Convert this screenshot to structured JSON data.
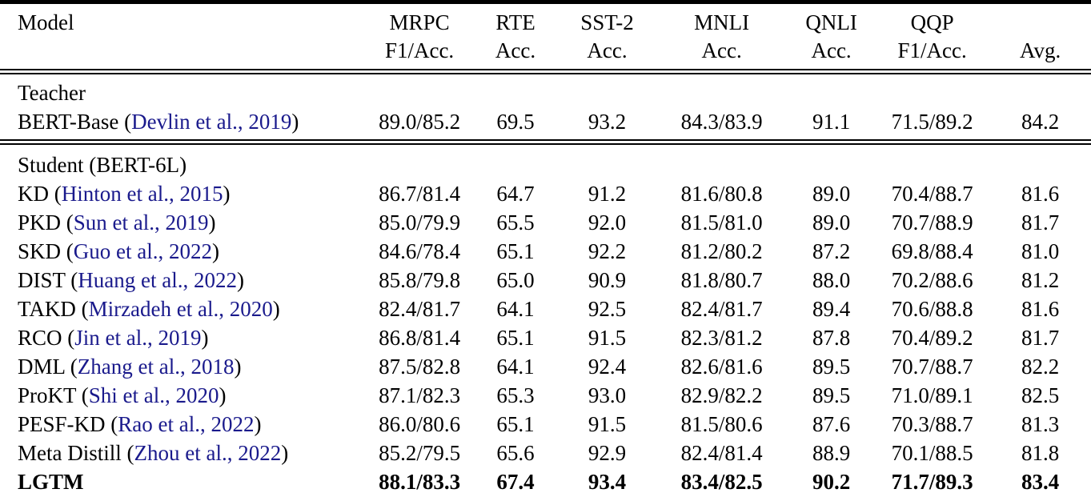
{
  "colors": {
    "text": "#000000",
    "citation_link": "#1a1a8c",
    "rule": "#000000",
    "background": "#ffffff"
  },
  "table": {
    "punctuation": {
      "open": " (",
      "close": ")"
    },
    "columns": [
      {
        "line1": "Model",
        "line2": ""
      },
      {
        "line1": "MRPC",
        "line2": "F1/Acc."
      },
      {
        "line1": "RTE",
        "line2": "Acc."
      },
      {
        "line1": "SST-2",
        "line2": "Acc."
      },
      {
        "line1": "MNLI",
        "line2": "Acc."
      },
      {
        "line1": "QNLI",
        "line2": "Acc."
      },
      {
        "line1": "QQP",
        "line2": "F1/Acc."
      },
      {
        "line1": "",
        "line2": "Avg."
      }
    ],
    "sections": [
      {
        "label": "Teacher",
        "rows": [
          {
            "name": "BERT-Base",
            "citation": "Devlin et al., 2019",
            "bold": false,
            "values": [
              "89.0/85.2",
              "69.5",
              "93.2",
              "84.3/83.9",
              "91.1",
              "71.5/89.2",
              "84.2"
            ]
          }
        ]
      },
      {
        "label": "Student (BERT-6L)",
        "rows": [
          {
            "name": "KD",
            "citation": "Hinton et al., 2015",
            "bold": false,
            "values": [
              "86.7/81.4",
              "64.7",
              "91.2",
              "81.6/80.8",
              "89.0",
              "70.4/88.7",
              "81.6"
            ]
          },
          {
            "name": "PKD",
            "citation": "Sun et al., 2019",
            "bold": false,
            "values": [
              "85.0/79.9",
              "65.5",
              "92.0",
              "81.5/81.0",
              "89.0",
              "70.7/88.9",
              "81.7"
            ]
          },
          {
            "name": "SKD",
            "citation": "Guo et al., 2022",
            "bold": false,
            "values": [
              "84.6/78.4",
              "65.1",
              "92.2",
              "81.2/80.2",
              "87.2",
              "69.8/88.4",
              "81.0"
            ]
          },
          {
            "name": "DIST",
            "citation": "Huang et al., 2022",
            "bold": false,
            "values": [
              "85.8/79.8",
              "65.0",
              "90.9",
              "81.8/80.7",
              "88.0",
              "70.2/88.6",
              "81.2"
            ]
          },
          {
            "name": "TAKD",
            "citation": "Mirzadeh et al., 2020",
            "bold": false,
            "values": [
              "82.4/81.7",
              "64.1",
              "92.5",
              "82.4/81.7",
              "89.4",
              "70.6/88.8",
              "81.6"
            ]
          },
          {
            "name": "RCO",
            "citation": "Jin et al., 2019",
            "bold": false,
            "values": [
              "86.8/81.4",
              "65.1",
              "91.5",
              "82.3/81.2",
              "87.8",
              "70.4/89.2",
              "81.7"
            ]
          },
          {
            "name": "DML",
            "citation": "Zhang et al., 2018",
            "bold": false,
            "values": [
              "87.5/82.8",
              "64.1",
              "92.4",
              "82.6/81.6",
              "89.5",
              "70.7/88.7",
              "82.2"
            ]
          },
          {
            "name": "ProKT",
            "citation": "Shi et al., 2020",
            "bold": false,
            "values": [
              "87.1/82.3",
              "65.3",
              "93.0",
              "82.9/82.2",
              "89.5",
              "71.0/89.1",
              "82.5"
            ]
          },
          {
            "name": "PESF-KD",
            "citation": "Rao et al., 2022",
            "bold": false,
            "values": [
              "86.0/80.6",
              "65.1",
              "91.5",
              "81.5/80.6",
              "87.6",
              "70.3/88.7",
              "81.3"
            ]
          },
          {
            "name": "Meta Distill",
            "citation": "Zhou et al., 2022",
            "bold": false,
            "values": [
              "85.2/79.5",
              "65.6",
              "92.9",
              "82.4/81.4",
              "88.9",
              "70.1/88.5",
              "81.8"
            ]
          },
          {
            "name": "LGTM",
            "citation": null,
            "bold": true,
            "values": [
              "88.1/83.3",
              "67.4",
              "93.4",
              "83.4/82.5",
              "90.2",
              "71.7/89.3",
              "83.4"
            ]
          }
        ]
      }
    ]
  }
}
